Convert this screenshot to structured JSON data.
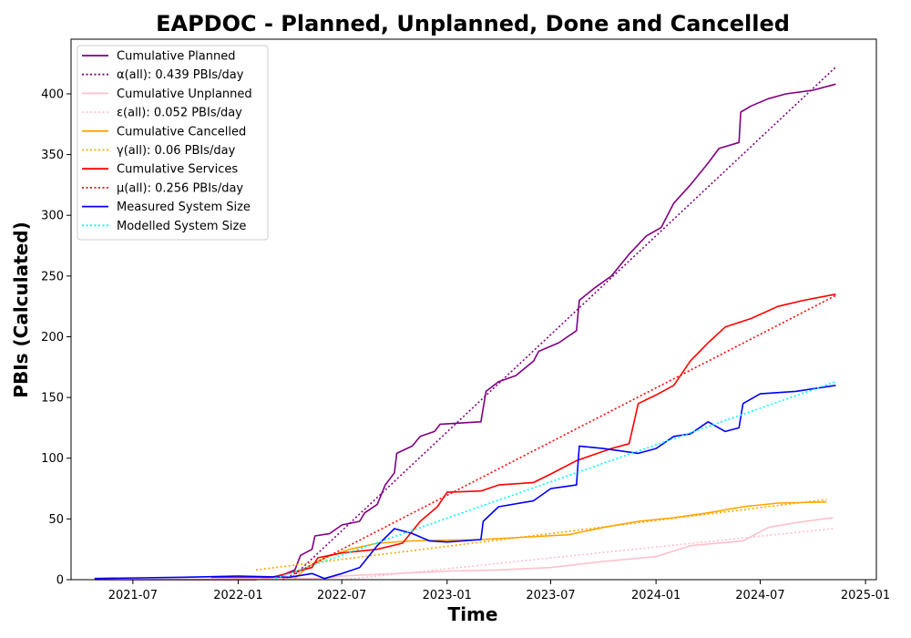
{
  "chart_data": {
    "type": "line",
    "title": "EAPDOC - Planned, Unplanned, Done  and Cancelled",
    "xlabel": "Time",
    "ylabel": "PBIs (Calculated)",
    "xlim": [
      "2021-03-15",
      "2025-01-20"
    ],
    "ylim": [
      0,
      445
    ],
    "x_ticks": [
      "2021-07",
      "2022-01",
      "2022-07",
      "2023-01",
      "2023-07",
      "2024-01",
      "2024-07",
      "2025-01"
    ],
    "y_ticks": [
      0,
      50,
      100,
      150,
      200,
      250,
      300,
      350,
      400
    ],
    "grid": false,
    "legend_position": "upper-left",
    "series": [
      {
        "name": "Cumulative Planned",
        "color": "#800080",
        "style": "solid",
        "points": [
          [
            "2021-04-25",
            0
          ],
          [
            "2022-02-01",
            0
          ],
          [
            "2022-03-15",
            3
          ],
          [
            "2022-04-10",
            8
          ],
          [
            "2022-04-20",
            20
          ],
          [
            "2022-05-10",
            25
          ],
          [
            "2022-05-15",
            36
          ],
          [
            "2022-06-10",
            38
          ],
          [
            "2022-07-01",
            45
          ],
          [
            "2022-08-01",
            48
          ],
          [
            "2022-08-10",
            55
          ],
          [
            "2022-09-01",
            62
          ],
          [
            "2022-09-15",
            78
          ],
          [
            "2022-10-01",
            88
          ],
          [
            "2022-10-05",
            104
          ],
          [
            "2022-11-01",
            110
          ],
          [
            "2022-11-15",
            118
          ],
          [
            "2022-12-10",
            122
          ],
          [
            "2022-12-20",
            128
          ],
          [
            "2023-03-01",
            130
          ],
          [
            "2023-03-10",
            155
          ],
          [
            "2023-04-01",
            163
          ],
          [
            "2023-05-01",
            168
          ],
          [
            "2023-06-01",
            180
          ],
          [
            "2023-06-10",
            188
          ],
          [
            "2023-07-15",
            195
          ],
          [
            "2023-08-15",
            205
          ],
          [
            "2023-08-20",
            230
          ],
          [
            "2023-09-15",
            240
          ],
          [
            "2023-10-15",
            250
          ],
          [
            "2023-11-15",
            268
          ],
          [
            "2023-12-15",
            283
          ],
          [
            "2024-01-10",
            290
          ],
          [
            "2024-02-01",
            310
          ],
          [
            "2024-03-01",
            325
          ],
          [
            "2024-04-01",
            343
          ],
          [
            "2024-04-20",
            355
          ],
          [
            "2024-05-25",
            360
          ],
          [
            "2024-05-28",
            385
          ],
          [
            "2024-06-15",
            390
          ],
          [
            "2024-07-15",
            396
          ],
          [
            "2024-08-15",
            400
          ],
          [
            "2024-10-01",
            403
          ],
          [
            "2024-11-10",
            408
          ]
        ]
      },
      {
        "name": "α(all): 0.439 PBIs/day",
        "color": "#800080",
        "style": "dotted",
        "points": [
          [
            "2022-04-01",
            0
          ],
          [
            "2024-11-10",
            422
          ]
        ]
      },
      {
        "name": "Cumulative Unplanned",
        "color": "#ffc0cb",
        "style": "solid",
        "points": [
          [
            "2021-04-25",
            0
          ],
          [
            "2022-06-01",
            1
          ],
          [
            "2022-07-01",
            3
          ],
          [
            "2022-10-01",
            5
          ],
          [
            "2023-01-01",
            7
          ],
          [
            "2023-04-01",
            8
          ],
          [
            "2023-07-01",
            10
          ],
          [
            "2023-10-01",
            15
          ],
          [
            "2024-01-01",
            19
          ],
          [
            "2024-03-01",
            28
          ],
          [
            "2024-06-01",
            32
          ],
          [
            "2024-07-15",
            43
          ],
          [
            "2024-09-01",
            47
          ],
          [
            "2024-11-05",
            51
          ]
        ]
      },
      {
        "name": "ε(all): 0.052 PBIs/day",
        "color": "#ffc0cb",
        "style": "dotted",
        "points": [
          [
            "2022-07-01",
            0
          ],
          [
            "2024-11-05",
            42
          ]
        ]
      },
      {
        "name": "Cumulative Cancelled",
        "color": "#ffa500",
        "style": "solid",
        "points": [
          [
            "2022-04-10",
            1
          ],
          [
            "2022-05-01",
            10
          ],
          [
            "2022-06-01",
            18
          ],
          [
            "2022-07-15",
            25
          ],
          [
            "2022-09-01",
            30
          ],
          [
            "2022-11-01",
            32
          ],
          [
            "2023-03-01",
            33
          ],
          [
            "2023-08-01",
            37
          ],
          [
            "2023-10-01",
            43
          ],
          [
            "2023-12-01",
            48
          ],
          [
            "2024-02-01",
            51
          ],
          [
            "2024-04-01",
            55
          ],
          [
            "2024-06-01",
            60
          ],
          [
            "2024-08-01",
            63
          ],
          [
            "2024-10-25",
            64
          ]
        ]
      },
      {
        "name": "γ(all): 0.06 PBIs/day",
        "color": "#ffa500",
        "style": "dotted",
        "points": [
          [
            "2022-02-01",
            8
          ],
          [
            "2024-10-25",
            66
          ]
        ]
      },
      {
        "name": "Cumulative Services",
        "color": "#ff0000",
        "style": "solid",
        "points": [
          [
            "2021-11-15",
            2
          ],
          [
            "2022-03-01",
            2
          ],
          [
            "2022-05-10",
            10
          ],
          [
            "2022-05-20",
            18
          ],
          [
            "2022-07-01",
            22
          ],
          [
            "2022-09-01",
            25
          ],
          [
            "2022-10-15",
            30
          ],
          [
            "2022-11-15",
            48
          ],
          [
            "2022-12-15",
            60
          ],
          [
            "2023-01-01",
            72
          ],
          [
            "2023-03-01",
            73
          ],
          [
            "2023-04-01",
            78
          ],
          [
            "2023-06-01",
            80
          ],
          [
            "2023-07-01",
            87
          ],
          [
            "2023-08-15",
            98
          ],
          [
            "2023-10-15",
            108
          ],
          [
            "2023-11-15",
            112
          ],
          [
            "2023-12-01",
            145
          ],
          [
            "2024-01-01",
            152
          ],
          [
            "2024-02-01",
            160
          ],
          [
            "2024-03-01",
            180
          ],
          [
            "2024-04-01",
            195
          ],
          [
            "2024-05-01",
            208
          ],
          [
            "2024-06-15",
            215
          ],
          [
            "2024-08-01",
            225
          ],
          [
            "2024-09-15",
            230
          ],
          [
            "2024-11-10",
            235
          ]
        ]
      },
      {
        "name": "μ(all): 0.256 PBIs/day",
        "color": "#ff0000",
        "style": "dotted",
        "points": [
          [
            "2022-03-20",
            0
          ],
          [
            "2024-11-10",
            234
          ]
        ]
      },
      {
        "name": "Measured System Size",
        "color": "#0000ff",
        "style": "solid",
        "points": [
          [
            "2021-04-25",
            1
          ],
          [
            "2021-10-01",
            2
          ],
          [
            "2022-01-01",
            3
          ],
          [
            "2022-04-01",
            2
          ],
          [
            "2022-05-10",
            5
          ],
          [
            "2022-06-01",
            1
          ],
          [
            "2022-07-01",
            5
          ],
          [
            "2022-08-01",
            10
          ],
          [
            "2022-09-01",
            28
          ],
          [
            "2022-10-01",
            42
          ],
          [
            "2022-11-01",
            38
          ],
          [
            "2022-12-01",
            32
          ],
          [
            "2023-01-01",
            31
          ],
          [
            "2023-03-01",
            33
          ],
          [
            "2023-03-05",
            48
          ],
          [
            "2023-04-01",
            60
          ],
          [
            "2023-06-01",
            65
          ],
          [
            "2023-07-01",
            75
          ],
          [
            "2023-08-15",
            78
          ],
          [
            "2023-08-20",
            110
          ],
          [
            "2023-10-01",
            108
          ],
          [
            "2023-12-01",
            104
          ],
          [
            "2024-01-01",
            108
          ],
          [
            "2024-02-01",
            118
          ],
          [
            "2024-03-01",
            120
          ],
          [
            "2024-04-01",
            130
          ],
          [
            "2024-05-01",
            122
          ],
          [
            "2024-05-25",
            125
          ],
          [
            "2024-06-01",
            145
          ],
          [
            "2024-07-01",
            153
          ],
          [
            "2024-09-01",
            155
          ],
          [
            "2024-11-10",
            160
          ]
        ]
      },
      {
        "name": "Modelled System Size",
        "color": "#00ffff",
        "style": "dotted",
        "points": [
          [
            "2022-03-01",
            0
          ],
          [
            "2024-11-10",
            163
          ]
        ]
      }
    ]
  }
}
